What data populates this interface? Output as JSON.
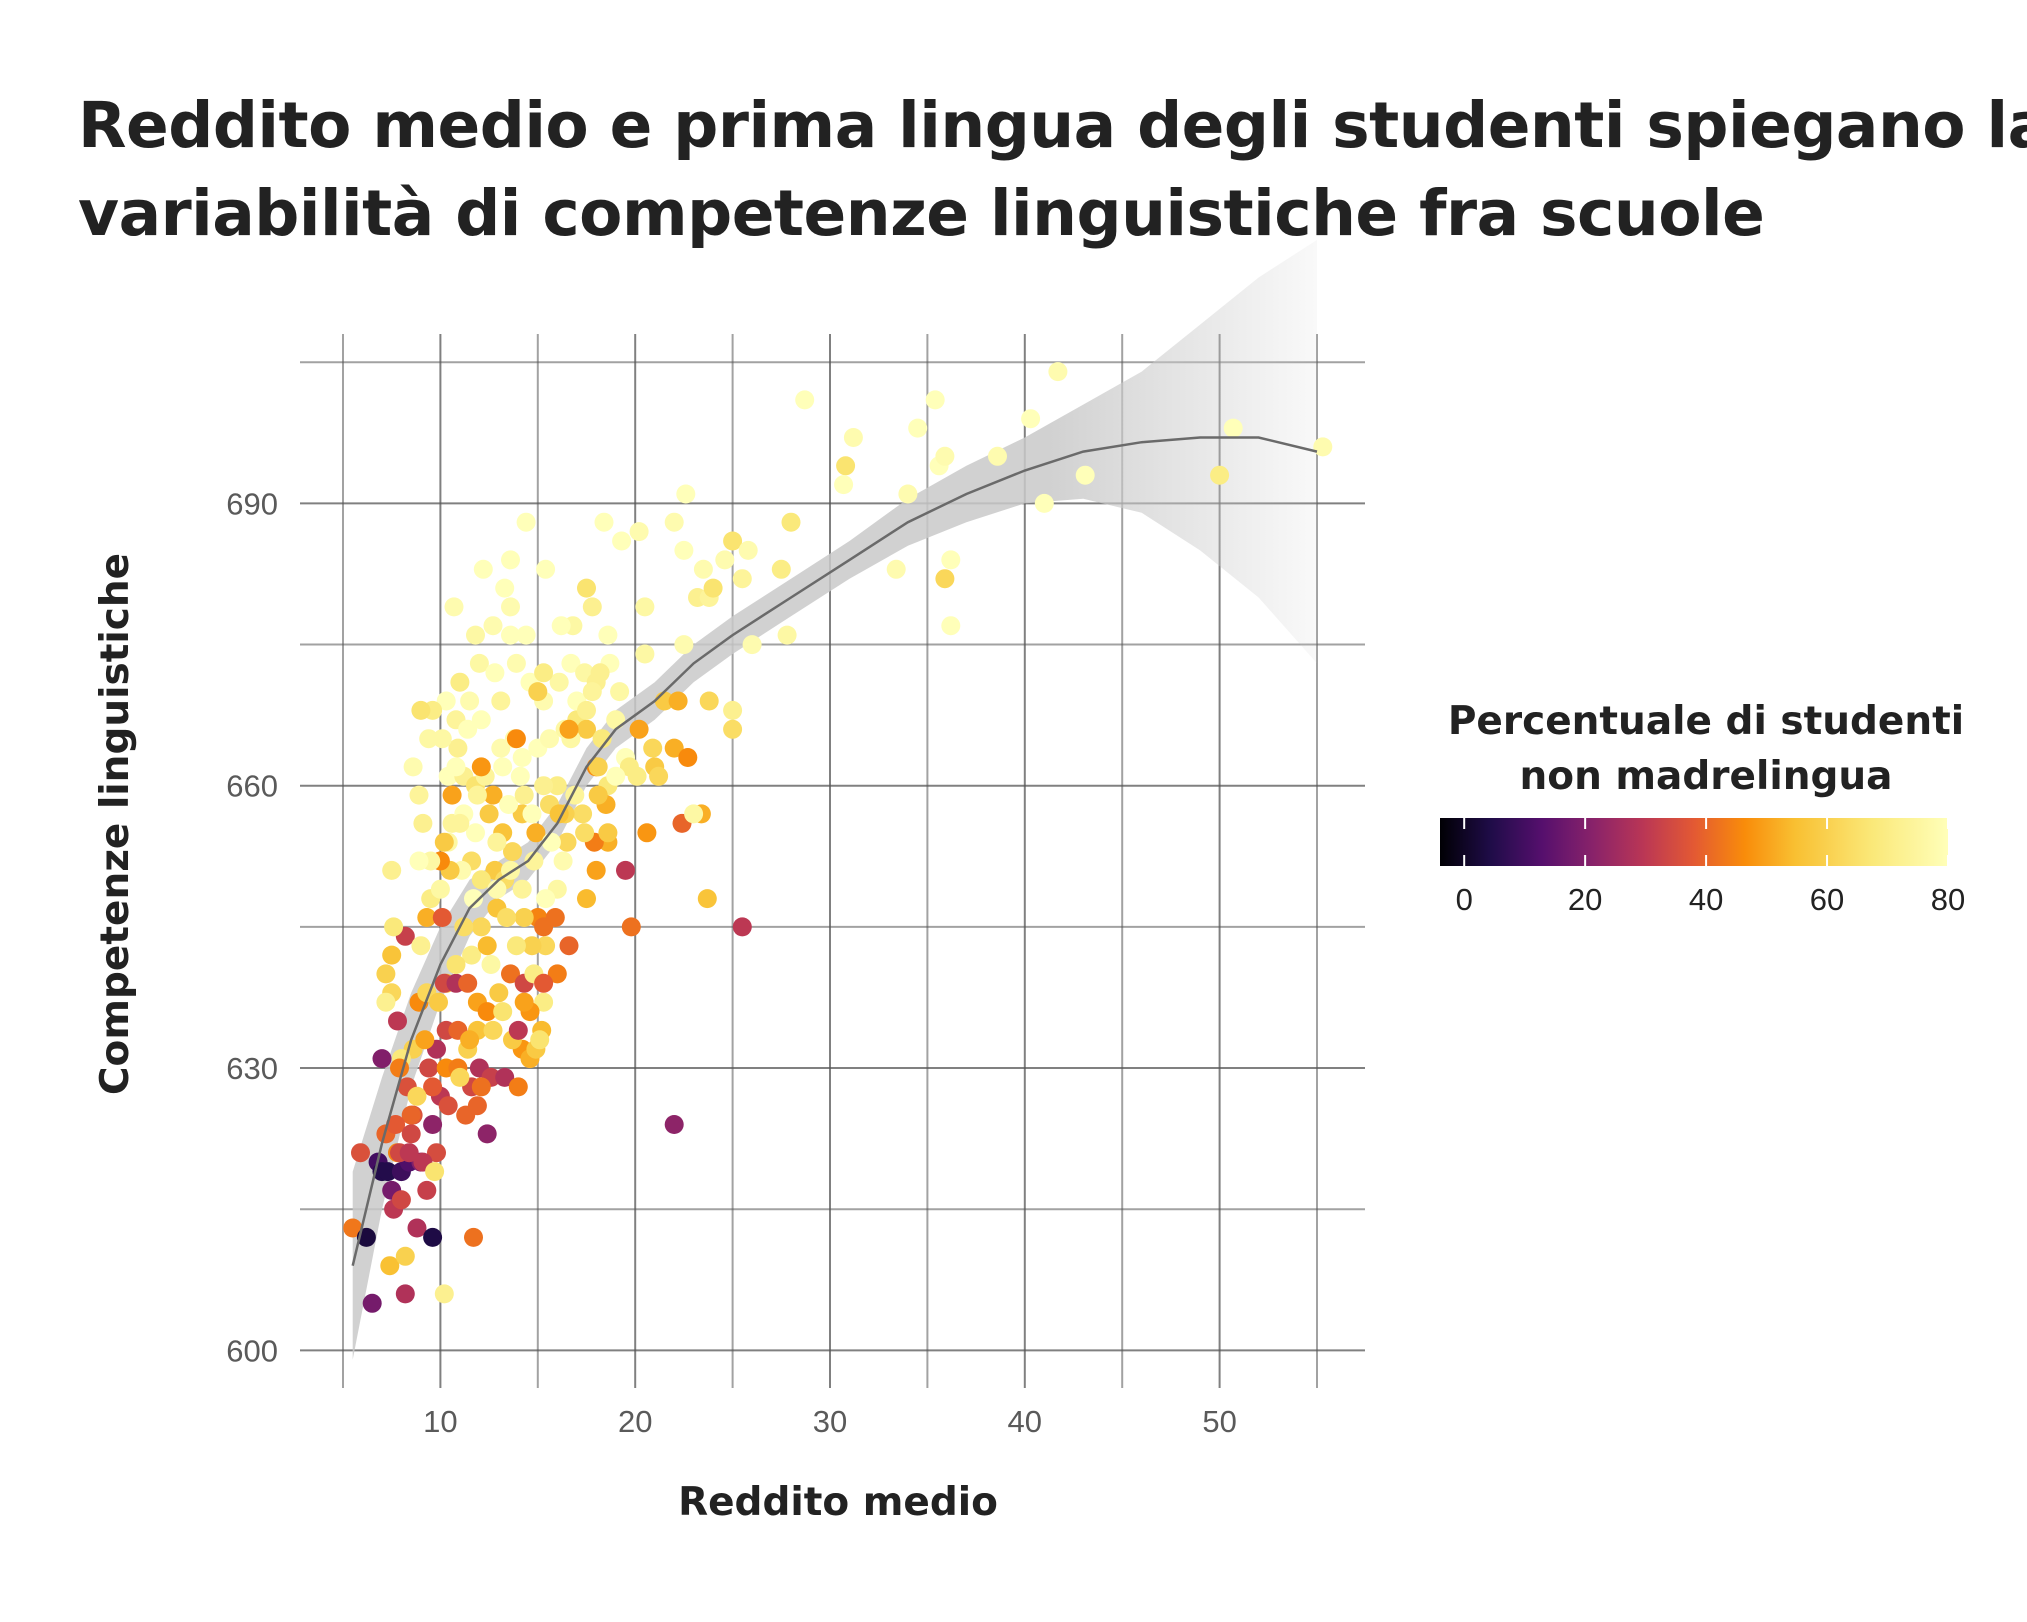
{
  "title_lines": [
    "Reddito medio e prima lingua degli studenti spiegano la",
    "variabilità di competenze linguistiche fra scuole"
  ],
  "chart_data": {
    "type": "scatter",
    "xlabel": "Reddito medio",
    "ylabel": "Competenze linguistiche",
    "xlim": [
      5,
      55
    ],
    "ylim": [
      596,
      708
    ],
    "x_ticks": [
      10,
      20,
      30,
      40,
      50
    ],
    "y_ticks": [
      600,
      630,
      660,
      690
    ],
    "grid": true,
    "legend": {
      "title_lines": [
        "Percentuale di studenti",
        "non madrelingua"
      ],
      "ticks": [
        0,
        20,
        40,
        60,
        80
      ],
      "range": [
        -4,
        80
      ],
      "colormap": "inferno"
    },
    "colors": {
      "ribbon": "#cfcfcf",
      "trend": "#6a6a6a",
      "grid": "#555555"
    },
    "trend": {
      "x": [
        5.5,
        7,
        8.5,
        10,
        11.5,
        13,
        14.5,
        16,
        17.5,
        19,
        21,
        23,
        25,
        28,
        31,
        34,
        37,
        40,
        43,
        46,
        49,
        52,
        55
      ],
      "y": [
        609,
        622,
        633,
        641,
        647,
        650,
        652,
        656,
        662,
        666,
        669,
        673,
        676,
        680,
        684,
        688,
        691,
        693.5,
        695.5,
        696.5,
        697,
        697,
        695.5
      ],
      "lower": [
        599,
        615,
        628,
        637,
        644,
        648,
        650,
        654,
        660,
        664,
        667,
        671,
        674,
        678,
        682,
        685.5,
        688,
        690,
        690.5,
        689,
        685,
        680,
        673
      ],
      "upper": [
        619,
        629,
        638,
        645,
        650,
        652,
        654,
        658,
        664,
        668,
        671,
        675,
        678,
        682,
        686,
        690.5,
        694,
        697,
        700.5,
        704,
        709,
        714,
        718
      ]
    },
    "points": [
      [
        5.5,
        613,
        43
      ],
      [
        5.9,
        621,
        36
      ],
      [
        6.2,
        612,
        3
      ],
      [
        6.5,
        605,
        18
      ],
      [
        6.8,
        620,
        10
      ],
      [
        7.0,
        631,
        20
      ],
      [
        7.0,
        619,
        5
      ],
      [
        7.3,
        619,
        5
      ],
      [
        7.5,
        617,
        18
      ],
      [
        7.6,
        615,
        30
      ],
      [
        7.4,
        609,
        55
      ],
      [
        7.2,
        623,
        40
      ],
      [
        7.8,
        621,
        45
      ],
      [
        8.0,
        619,
        9
      ],
      [
        8.2,
        606,
        28
      ],
      [
        8.0,
        616,
        34
      ],
      [
        8.2,
        610,
        60
      ],
      [
        8.4,
        620,
        12
      ],
      [
        8.6,
        625,
        36
      ],
      [
        8.8,
        613,
        28
      ],
      [
        9.0,
        620,
        20
      ],
      [
        9.3,
        617,
        32
      ],
      [
        9.6,
        624,
        22
      ],
      [
        9.8,
        621,
        35
      ],
      [
        9.6,
        612,
        4
      ],
      [
        10.2,
        606,
        72
      ],
      [
        11.7,
        612,
        42
      ],
      [
        10.0,
        627,
        30
      ],
      [
        10.4,
        626,
        36
      ],
      [
        11.3,
        625,
        40
      ],
      [
        11.9,
        626,
        40
      ],
      [
        12.4,
        623,
        22
      ],
      [
        11.6,
        628,
        34
      ],
      [
        12.0,
        630,
        28
      ],
      [
        12.6,
        629,
        32
      ],
      [
        13.3,
        629,
        28
      ],
      [
        14.0,
        628,
        44
      ],
      [
        14.2,
        632,
        48
      ],
      [
        14.6,
        631,
        52
      ],
      [
        15.2,
        634,
        54
      ],
      [
        14.9,
        632,
        58
      ],
      [
        15.3,
        637,
        70
      ],
      [
        15.0,
        646,
        45
      ],
      [
        16.0,
        640,
        44
      ],
      [
        16.6,
        643,
        40
      ],
      [
        17.5,
        648,
        54
      ],
      [
        18.0,
        651,
        50
      ],
      [
        18.6,
        654,
        52
      ],
      [
        19.5,
        651,
        30
      ],
      [
        19.8,
        645,
        42
      ],
      [
        20.6,
        655,
        48
      ],
      [
        22.0,
        624,
        22
      ],
      [
        22.4,
        656,
        40
      ],
      [
        23.4,
        657,
        52
      ],
      [
        23.7,
        648,
        56
      ],
      [
        25.5,
        645,
        30
      ],
      [
        22.0,
        664,
        52
      ],
      [
        22.7,
        663,
        46
      ],
      [
        21.0,
        662,
        58
      ],
      [
        20.9,
        664,
        62
      ],
      [
        20.2,
        666,
        50
      ],
      [
        21.5,
        669,
        58
      ],
      [
        22.2,
        669,
        52
      ],
      [
        23.8,
        669,
        62
      ],
      [
        25.0,
        666,
        64
      ],
      [
        25.0,
        668,
        72
      ],
      [
        20.5,
        674,
        76
      ],
      [
        22.5,
        675,
        78
      ],
      [
        23.2,
        680,
        72
      ],
      [
        23.8,
        680,
        74
      ],
      [
        24.6,
        684,
        78
      ],
      [
        25.0,
        686,
        66
      ],
      [
        25.5,
        682,
        74
      ],
      [
        25.8,
        685,
        78
      ],
      [
        26.0,
        675,
        78
      ],
      [
        27.5,
        683,
        70
      ],
      [
        27.8,
        676,
        76
      ],
      [
        28.0,
        688,
        68
      ],
      [
        22.0,
        688,
        78
      ],
      [
        22.6,
        691,
        80
      ],
      [
        22.5,
        685,
        80
      ],
      [
        23.5,
        683,
        78
      ],
      [
        24.0,
        681,
        66
      ],
      [
        20.5,
        679,
        76
      ],
      [
        20.2,
        687,
        78
      ],
      [
        19.3,
        686,
        80
      ],
      [
        18.4,
        688,
        80
      ],
      [
        17.5,
        681,
        66
      ],
      [
        17.8,
        679,
        72
      ],
      [
        16.8,
        677,
        76
      ],
      [
        16.2,
        677,
        80
      ],
      [
        15.4,
        683,
        80
      ],
      [
        14.4,
        688,
        80
      ],
      [
        13.6,
        684,
        80
      ],
      [
        12.2,
        683,
        80
      ],
      [
        13.3,
        681,
        80
      ],
      [
        13.6,
        679,
        78
      ],
      [
        14.4,
        676,
        80
      ],
      [
        13.6,
        676,
        80
      ],
      [
        12.7,
        677,
        78
      ],
      [
        11.8,
        676,
        76
      ],
      [
        10.7,
        679,
        78
      ],
      [
        11.0,
        671,
        70
      ],
      [
        12.0,
        673,
        76
      ],
      [
        12.8,
        672,
        80
      ],
      [
        10.8,
        667,
        74
      ],
      [
        11.5,
        669,
        78
      ],
      [
        10.9,
        664,
        72
      ],
      [
        10.1,
        665,
        76
      ],
      [
        9.4,
        665,
        76
      ],
      [
        8.6,
        662,
        78
      ],
      [
        8.9,
        659,
        74
      ],
      [
        10.4,
        661,
        80
      ],
      [
        11.2,
        661,
        72
      ],
      [
        11.8,
        660,
        66
      ],
      [
        12.3,
        661,
        74
      ],
      [
        13.1,
        664,
        78
      ],
      [
        13.8,
        665,
        78
      ],
      [
        14.2,
        663,
        80
      ],
      [
        15.0,
        664,
        80
      ],
      [
        15.3,
        669,
        78
      ],
      [
        16.1,
        671,
        76
      ],
      [
        16.7,
        673,
        80
      ],
      [
        17.4,
        672,
        76
      ],
      [
        18.0,
        671,
        72
      ],
      [
        18.7,
        673,
        80
      ],
      [
        19.2,
        670,
        76
      ],
      [
        17.0,
        667,
        68
      ],
      [
        17.5,
        666,
        58
      ],
      [
        18.3,
        665,
        68
      ],
      [
        18.6,
        660,
        68
      ],
      [
        19.5,
        663,
        80
      ],
      [
        19.7,
        662,
        70
      ],
      [
        18.5,
        658,
        52
      ],
      [
        18.0,
        662,
        46
      ],
      [
        17.3,
        657,
        64
      ],
      [
        16.4,
        657,
        60
      ],
      [
        16.0,
        660,
        70
      ],
      [
        15.6,
        658,
        64
      ],
      [
        14.9,
        655,
        52
      ],
      [
        14.2,
        657,
        58
      ],
      [
        13.7,
        653,
        62
      ],
      [
        13.2,
        655,
        56
      ],
      [
        12.8,
        651,
        58
      ],
      [
        12.1,
        650,
        68
      ],
      [
        11.6,
        652,
        64
      ],
      [
        11.1,
        651,
        78
      ],
      [
        10.5,
        651,
        58
      ],
      [
        10.0,
        652,
        46
      ],
      [
        9.5,
        652,
        76
      ],
      [
        8.9,
        652,
        80
      ],
      [
        7.5,
        651,
        72
      ],
      [
        9.3,
        646,
        52
      ],
      [
        10.1,
        646,
        38
      ],
      [
        11.6,
        642,
        70
      ],
      [
        12.4,
        643,
        54
      ],
      [
        12.1,
        645,
        62
      ],
      [
        12.9,
        647,
        56
      ],
      [
        13.3,
        650,
        64
      ],
      [
        14.3,
        646,
        60
      ],
      [
        15.3,
        645,
        42
      ],
      [
        16.0,
        649,
        76
      ],
      [
        16.5,
        654,
        62
      ],
      [
        17.9,
        654,
        44
      ],
      [
        18.6,
        655,
        58
      ],
      [
        8.2,
        644,
        32
      ],
      [
        7.6,
        645,
        68
      ],
      [
        7.5,
        642,
        56
      ],
      [
        7.2,
        640,
        60
      ],
      [
        7.5,
        638,
        62
      ],
      [
        7.2,
        637,
        72
      ],
      [
        7.8,
        635,
        30
      ],
      [
        8.6,
        632,
        60
      ],
      [
        8.9,
        637,
        46
      ],
      [
        9.3,
        638,
        62
      ],
      [
        9.9,
        637,
        58
      ],
      [
        10.3,
        639,
        54
      ],
      [
        10.2,
        639,
        34
      ],
      [
        10.8,
        639,
        28
      ],
      [
        11.4,
        639,
        40
      ],
      [
        11.9,
        637,
        50
      ],
      [
        12.4,
        636,
        46
      ],
      [
        13.0,
        638,
        58
      ],
      [
        13.6,
        640,
        42
      ],
      [
        14.3,
        639,
        34
      ],
      [
        14.8,
        640,
        70
      ],
      [
        15.4,
        643,
        62
      ],
      [
        15.9,
        646,
        42
      ],
      [
        14.7,
        643,
        60
      ],
      [
        13.9,
        643,
        68
      ],
      [
        9.4,
        630,
        34
      ],
      [
        9.8,
        632,
        28
      ],
      [
        10.3,
        634,
        34
      ],
      [
        10.9,
        634,
        40
      ],
      [
        11.4,
        632,
        60
      ],
      [
        11.9,
        634,
        56
      ],
      [
        12.7,
        634,
        62
      ],
      [
        13.2,
        636,
        66
      ],
      [
        13.7,
        633,
        58
      ],
      [
        14.0,
        634,
        30
      ],
      [
        14.6,
        636,
        48
      ],
      [
        15.3,
        639,
        38
      ],
      [
        8.3,
        628,
        36
      ],
      [
        8.5,
        625,
        40
      ],
      [
        9.6,
        628,
        38
      ],
      [
        10.3,
        630,
        46
      ],
      [
        10.9,
        630,
        44
      ],
      [
        11.5,
        633,
        52
      ],
      [
        12.1,
        628,
        42
      ],
      [
        11.0,
        629,
        62
      ],
      [
        7.7,
        624,
        38
      ],
      [
        7.9,
        621,
        34
      ],
      [
        8.4,
        621,
        30
      ],
      [
        9.1,
        620,
        30
      ],
      [
        9.7,
        619,
        66
      ],
      [
        8.0,
        631,
        68
      ],
      [
        8.5,
        623,
        34
      ],
      [
        9.2,
        633,
        50
      ],
      [
        8.8,
        627,
        62
      ],
      [
        7.9,
        630,
        44
      ],
      [
        10.8,
        641,
        66
      ],
      [
        11.2,
        645,
        64
      ],
      [
        12.6,
        641,
        76
      ],
      [
        13.4,
        646,
        64
      ],
      [
        14.3,
        637,
        50
      ],
      [
        15.1,
        633,
        66
      ],
      [
        9.0,
        643,
        72
      ],
      [
        9.5,
        648,
        70
      ],
      [
        10.0,
        649,
        76
      ],
      [
        10.6,
        656,
        74
      ],
      [
        11.2,
        657,
        80
      ],
      [
        11.7,
        648,
        80
      ],
      [
        12.9,
        649,
        78
      ],
      [
        13.6,
        651,
        76
      ],
      [
        14.2,
        649,
        74
      ],
      [
        14.8,
        652,
        74
      ],
      [
        15.3,
        660,
        72
      ],
      [
        15.7,
        654,
        80
      ],
      [
        16.3,
        652,
        78
      ],
      [
        16.9,
        659,
        74
      ],
      [
        17.4,
        655,
        64
      ],
      [
        18.1,
        659,
        58
      ],
      [
        19.0,
        661,
        80
      ],
      [
        20.1,
        661,
        70
      ],
      [
        21.2,
        661,
        62
      ],
      [
        23.0,
        657,
        76
      ],
      [
        12.5,
        657,
        58
      ],
      [
        12.7,
        659,
        52
      ],
      [
        11.8,
        655,
        80
      ],
      [
        10.8,
        662,
        80
      ],
      [
        13.2,
        662,
        80
      ],
      [
        14.1,
        661,
        80
      ],
      [
        15.6,
        665,
        78
      ],
      [
        16.4,
        666,
        76
      ],
      [
        17.0,
        669,
        80
      ],
      [
        17.8,
        670,
        74
      ],
      [
        19.0,
        667,
        76
      ],
      [
        14.6,
        671,
        80
      ],
      [
        15.3,
        672,
        70
      ],
      [
        13.9,
        673,
        78
      ],
      [
        13.1,
        669,
        74
      ],
      [
        12.1,
        667,
        80
      ],
      [
        11.4,
        666,
        80
      ],
      [
        10.3,
        669,
        80
      ],
      [
        9.6,
        668,
        70
      ],
      [
        9.0,
        668,
        66
      ],
      [
        9.1,
        656,
        72
      ],
      [
        10.4,
        654,
        76
      ],
      [
        11.0,
        656,
        74
      ],
      [
        11.9,
        659,
        74
      ],
      [
        12.9,
        654,
        74
      ],
      [
        13.5,
        658,
        80
      ],
      [
        14.3,
        659,
        72
      ],
      [
        14.7,
        657,
        80
      ],
      [
        15.4,
        648,
        80
      ],
      [
        16.1,
        657,
        56
      ],
      [
        16.7,
        665,
        76
      ],
      [
        17.5,
        668,
        72
      ],
      [
        18.2,
        672,
        72
      ],
      [
        18.6,
        676,
        80
      ],
      [
        10.2,
        654,
        58
      ],
      [
        10.6,
        659,
        50
      ],
      [
        12.1,
        662,
        48
      ],
      [
        13.9,
        665,
        46
      ],
      [
        15.0,
        670,
        60
      ],
      [
        16.6,
        666,
        50
      ],
      [
        18.1,
        662,
        60
      ],
      [
        28.7,
        701,
        80
      ],
      [
        31.2,
        697,
        78
      ],
      [
        30.8,
        694,
        66
      ],
      [
        30.7,
        692,
        80
      ],
      [
        33.4,
        683,
        78
      ],
      [
        34.0,
        691,
        78
      ],
      [
        34.5,
        698,
        80
      ],
      [
        35.4,
        701,
        80
      ],
      [
        35.6,
        694,
        80
      ],
      [
        35.9,
        695,
        78
      ],
      [
        36.2,
        684,
        80
      ],
      [
        36.2,
        677,
        80
      ],
      [
        35.9,
        682,
        62
      ],
      [
        38.6,
        695,
        78
      ],
      [
        40.3,
        699,
        80
      ],
      [
        41.0,
        690,
        80
      ],
      [
        41.7,
        704,
        78
      ],
      [
        43.1,
        693,
        80
      ],
      [
        50.0,
        693,
        70
      ],
      [
        50.7,
        698,
        80
      ],
      [
        55.3,
        696,
        78
      ]
    ]
  }
}
